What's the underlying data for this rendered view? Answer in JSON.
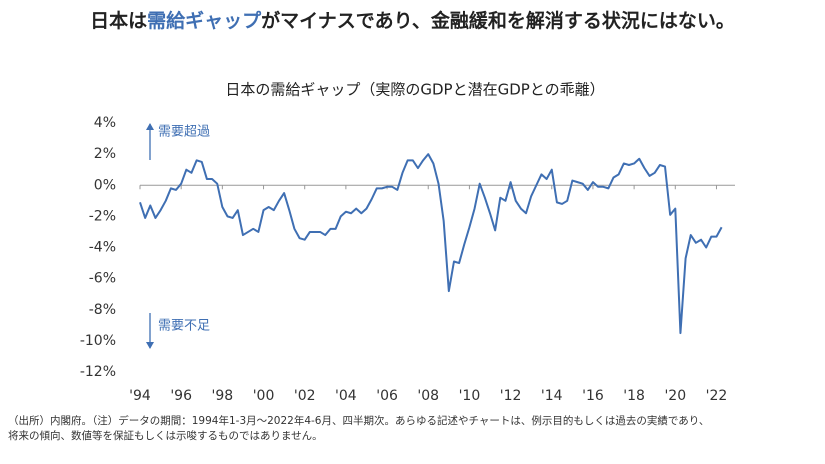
{
  "headline": {
    "before": "日本は",
    "highlight": "需給ギャップ",
    "after": "がマイナスであり、金融緩和を解消する状況にはない。"
  },
  "chart_data": {
    "type": "line",
    "title": "日本の需給ギャップ（実際のGDPと潜在GDPとの乖離）",
    "annotations": {
      "upper": "需要超過",
      "lower": "需要不足"
    },
    "x": [
      1994,
      1994.25,
      1994.5,
      1994.75,
      1995,
      1995.25,
      1995.5,
      1995.75,
      1996,
      1996.25,
      1996.5,
      1996.75,
      1997,
      1997.25,
      1997.5,
      1997.75,
      1998,
      1998.25,
      1998.5,
      1998.75,
      1999,
      1999.25,
      1999.5,
      1999.75,
      2000,
      2000.25,
      2000.5,
      2000.75,
      2001,
      2001.25,
      2001.5,
      2001.75,
      2002,
      2002.25,
      2002.5,
      2002.75,
      2003,
      2003.25,
      2003.5,
      2003.75,
      2004,
      2004.25,
      2004.5,
      2004.75,
      2005,
      2005.25,
      2005.5,
      2005.75,
      2006,
      2006.25,
      2006.5,
      2006.75,
      2007,
      2007.25,
      2007.5,
      2007.75,
      2008,
      2008.25,
      2008.5,
      2008.75,
      2009,
      2009.25,
      2009.5,
      2009.75,
      2010,
      2010.25,
      2010.5,
      2010.75,
      2011,
      2011.25,
      2011.5,
      2011.75,
      2012,
      2012.25,
      2012.5,
      2012.75,
      2013,
      2013.25,
      2013.5,
      2013.75,
      2014,
      2014.25,
      2014.5,
      2014.75,
      2015,
      2015.25,
      2015.5,
      2015.75,
      2016,
      2016.25,
      2016.5,
      2016.75,
      2017,
      2017.25,
      2017.5,
      2017.75,
      2018,
      2018.25,
      2018.5,
      2018.75,
      2019,
      2019.25,
      2019.5,
      2019.75,
      2020,
      2020.25,
      2020.5,
      2020.75,
      2021,
      2021.25,
      2021.5,
      2021.75,
      2022,
      2022.25
    ],
    "series": [
      {
        "name": "需給ギャップ",
        "color": "#3f6fb3",
        "values": [
          -1.1,
          -2.1,
          -1.3,
          -2.1,
          -1.6,
          -1.0,
          -0.2,
          -0.3,
          0.1,
          1.0,
          0.8,
          1.6,
          1.5,
          0.4,
          0.4,
          0.1,
          -1.4,
          -2.0,
          -2.1,
          -1.6,
          -3.2,
          -3.0,
          -2.8,
          -3.0,
          -1.6,
          -1.4,
          -1.6,
          -1.0,
          -0.5,
          -1.6,
          -2.8,
          -3.4,
          -3.5,
          -3.0,
          -3.0,
          -3.0,
          -3.2,
          -2.8,
          -2.8,
          -2.0,
          -1.7,
          -1.8,
          -1.5,
          -1.8,
          -1.5,
          -0.9,
          -0.2,
          -0.2,
          -0.1,
          -0.1,
          -0.3,
          0.8,
          1.6,
          1.6,
          1.1,
          1.6,
          2.0,
          1.4,
          0.1,
          -2.3,
          -6.8,
          -4.9,
          -5.0,
          -3.8,
          -2.7,
          -1.5,
          0.1,
          -0.8,
          -1.8,
          -2.9,
          -0.8,
          -1.0,
          0.2,
          -1.0,
          -1.5,
          -1.8,
          -0.7,
          0.0,
          0.7,
          0.4,
          1.0,
          -1.1,
          -1.2,
          -1.0,
          0.3,
          0.2,
          0.1,
          -0.3,
          0.2,
          -0.1,
          -0.1,
          -0.2,
          0.5,
          0.7,
          1.4,
          1.3,
          1.4,
          1.7,
          1.1,
          0.6,
          0.8,
          1.3,
          1.2,
          -1.9,
          -1.5,
          -9.5,
          -4.7,
          -3.2,
          -3.7,
          -3.5,
          -4.0,
          -3.3,
          -3.3,
          -2.7
        ]
      }
    ],
    "xlim": [
      1994,
      2022.9
    ],
    "xticks": [
      {
        "value": 1994,
        "label": "'94"
      },
      {
        "value": 1996,
        "label": "'96"
      },
      {
        "value": 1998,
        "label": "'98"
      },
      {
        "value": 2000,
        "label": "'00"
      },
      {
        "value": 2002,
        "label": "'02"
      },
      {
        "value": 2004,
        "label": "'04"
      },
      {
        "value": 2006,
        "label": "'06"
      },
      {
        "value": 2008,
        "label": "'08"
      },
      {
        "value": 2010,
        "label": "'10"
      },
      {
        "value": 2012,
        "label": "'12"
      },
      {
        "value": 2014,
        "label": "'14"
      },
      {
        "value": 2016,
        "label": "'16"
      },
      {
        "value": 2018,
        "label": "'18"
      },
      {
        "value": 2020,
        "label": "'20"
      },
      {
        "value": 2022,
        "label": "'22"
      }
    ],
    "ylim": [
      -12,
      4
    ],
    "yticks": [
      {
        "value": 4,
        "label": "4%"
      },
      {
        "value": 2,
        "label": "2%"
      },
      {
        "value": 0,
        "label": "0%"
      },
      {
        "value": -2,
        "label": "-2%"
      },
      {
        "value": -4,
        "label": "-4%"
      },
      {
        "value": -6,
        "label": "-6%"
      },
      {
        "value": -8,
        "label": "-8%"
      },
      {
        "value": -10,
        "label": "-10%"
      },
      {
        "value": -12,
        "label": "-12%"
      }
    ],
    "grid": false
  },
  "footnote": [
    "（出所）内閣府。（注）データの期間：1994年1-3月～2022年4-6月、四半期次。あらゆる記述やチャートは、例示目的もしくは過去の実績であり、",
    "将来の傾向、数値等を保証もしくは示唆するものではありません。"
  ]
}
